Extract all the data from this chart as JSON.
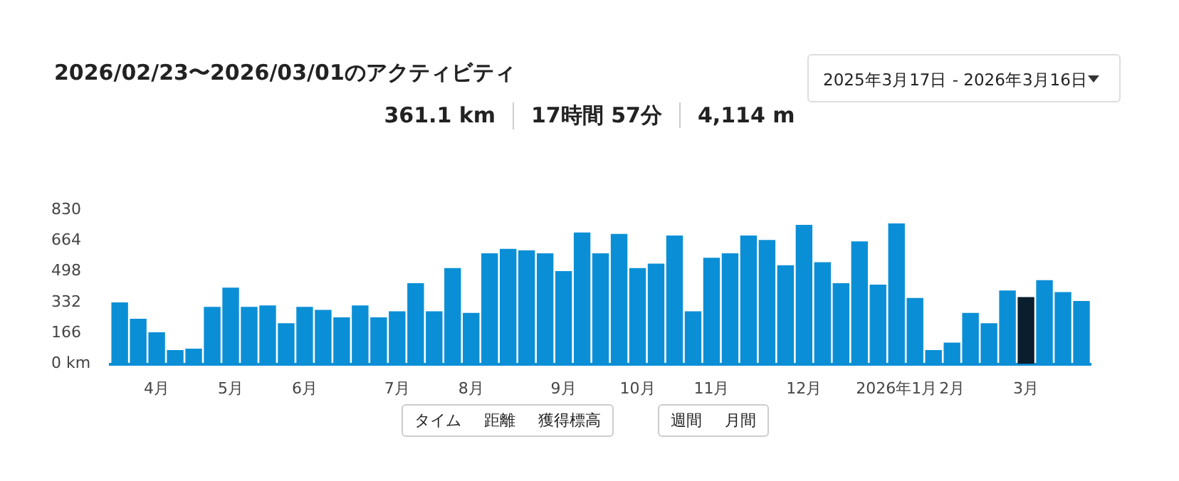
{
  "chart_data": {
    "type": "bar",
    "title": "2026/02/23〜2026/03/01のアクティビティ",
    "annotations": [
      "361.1 km",
      "17時間 57分",
      "4,114 m",
      "2025年3月17日 - 2026年3月16日",
      "タイム",
      "距離",
      "獲得標高",
      "週間",
      "月間"
    ],
    "categories": [
      null,
      null,
      "4月",
      null,
      null,
      null,
      "5月",
      null,
      null,
      null,
      "6月",
      null,
      null,
      null,
      null,
      "7月",
      null,
      null,
      null,
      "8月",
      null,
      null,
      null,
      null,
      "9月",
      null,
      null,
      null,
      "10月",
      null,
      null,
      null,
      "11月",
      null,
      null,
      null,
      null,
      "12月",
      null,
      null,
      null,
      null,
      "2026年1月",
      null,
      null,
      "2月",
      null,
      null,
      null,
      "3月",
      null,
      null,
      null
    ],
    "values": [
      332,
      244,
      171,
      75,
      83,
      308,
      412,
      308,
      316,
      220,
      308,
      292,
      252,
      316,
      252,
      284,
      436,
      284,
      517,
      276,
      597,
      621,
      613,
      597,
      501,
      709,
      597,
      701,
      517,
      541,
      693,
      284,
      573,
      597,
      693,
      669,
      533,
      750,
      549,
      436,
      661,
      428,
      758,
      356,
      75,
      115,
      276,
      220,
      396,
      361.1,
      452,
      388,
      340
    ],
    "colors": [
      "#0a8fd6",
      "#0a8fd6",
      "#0a8fd6",
      "#0a8fd6",
      "#0a8fd6",
      "#0a8fd6",
      "#0a8fd6",
      "#0a8fd6",
      "#0a8fd6",
      "#0a8fd6",
      "#0a8fd6",
      "#0a8fd6",
      "#0a8fd6",
      "#0a8fd6",
      "#0a8fd6",
      "#0a8fd6",
      "#0a8fd6",
      "#0a8fd6",
      "#0a8fd6",
      "#0a8fd6",
      "#0a8fd6",
      "#0a8fd6",
      "#0a8fd6",
      "#0a8fd6",
      "#0a8fd6",
      "#0a8fd6",
      "#0a8fd6",
      "#0a8fd6",
      "#0a8fd6",
      "#0a8fd6",
      "#0a8fd6",
      "#0a8fd6",
      "#0a8fd6",
      "#0a8fd6",
      "#0a8fd6",
      "#0a8fd6",
      "#0a8fd6",
      "#0a8fd6",
      "#0a8fd6",
      "#0a8fd6",
      "#0a8fd6",
      "#0a8fd6",
      "#0a8fd6",
      "#0a8fd6",
      "#0a8fd6",
      "#0a8fd6",
      "#0a8fd6",
      "#0a8fd6",
      "#0a8fd6",
      "#0a1e2e",
      "#0a8fd6",
      "#0a8fd6",
      "#0a8fd6"
    ],
    "ylim": [
      0,
      830
    ],
    "yticks": [
      {
        "value": 0,
        "label": "0 km"
      },
      166,
      332,
      498,
      664,
      830
    ]
  }
}
